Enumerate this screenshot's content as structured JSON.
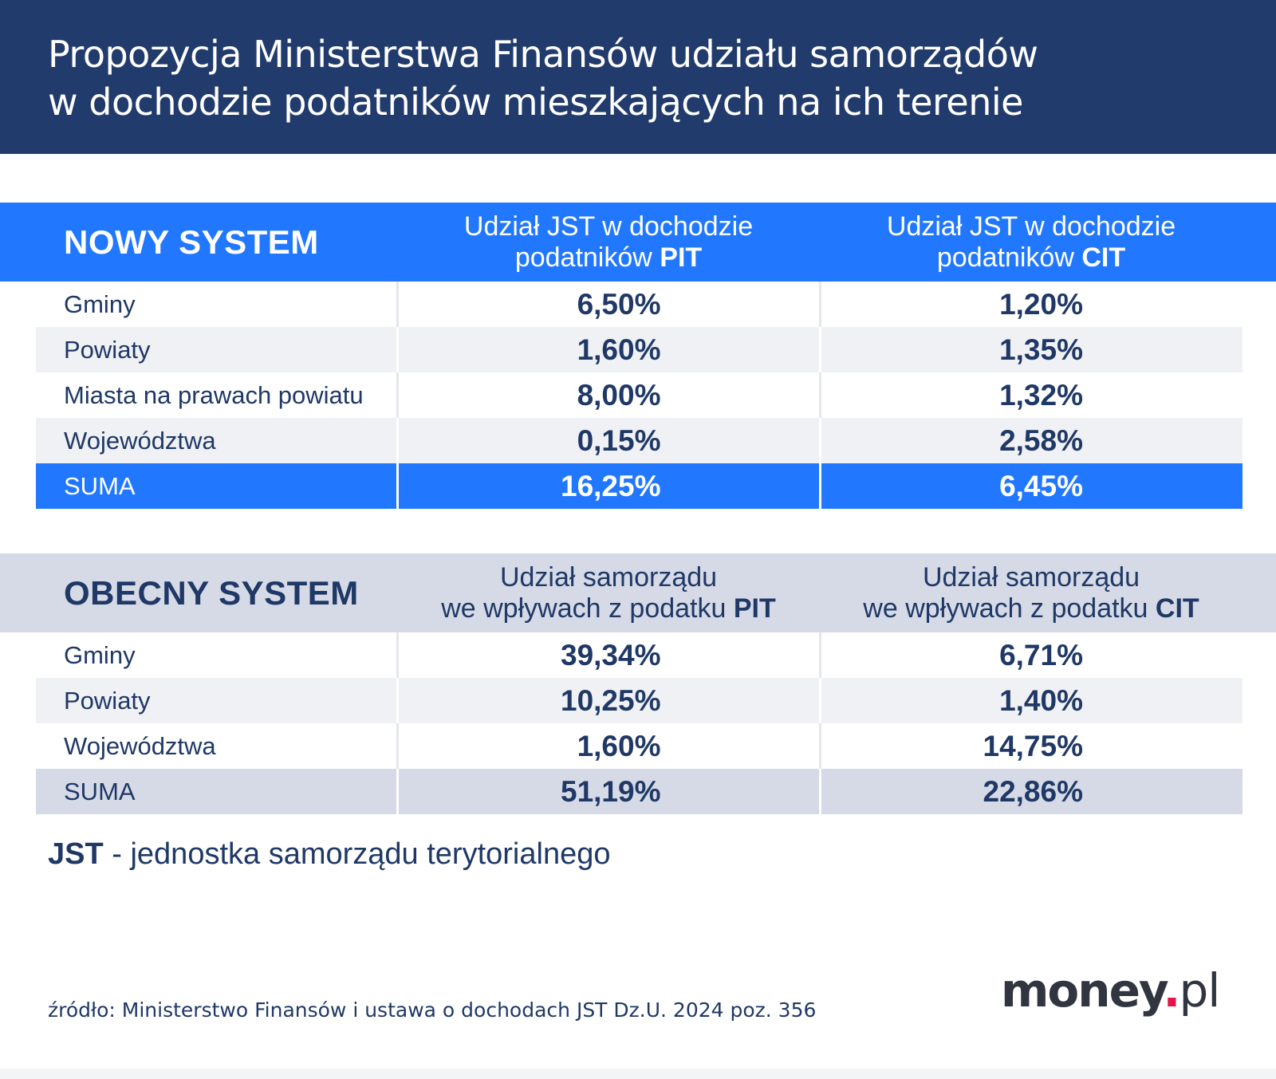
{
  "title": {
    "line1": "Propozycja Ministerstwa Finansów udziału samorządów",
    "line2": "w dochodzie podatników mieszkających na ich terenie"
  },
  "new_system": {
    "label": "NOWY SYSTEM",
    "col_pit_text": "Udział JST w dochodzie",
    "col_pit_text2": "podatników ",
    "col_pit_bold": "PIT",
    "col_cit_text": "Udział JST w dochodzie",
    "col_cit_text2": "podatników ",
    "col_cit_bold": "CIT",
    "rows": [
      {
        "name": "Gminy",
        "pit": "6,50%",
        "cit": "1,20%"
      },
      {
        "name": "Powiaty",
        "pit": "1,60%",
        "cit": "1,35%"
      },
      {
        "name": "Miasta na prawach powiatu",
        "pit": "8,00%",
        "cit": "1,32%"
      },
      {
        "name": "Województwa",
        "pit": "0,15%",
        "cit": "2,58%"
      },
      {
        "name": "SUMA",
        "pit": "16,25%",
        "cit": "6,45%"
      }
    ]
  },
  "current_system": {
    "label": "OBECNY SYSTEM",
    "col_pit_text": "Udział samorządu",
    "col_pit_text2": "we wpływach z podatku ",
    "col_pit_bold": "PIT",
    "col_cit_text": "Udział samorządu",
    "col_cit_text2": "we wpływach z podatku ",
    "col_cit_bold": "CIT",
    "rows": [
      {
        "name": "Gminy",
        "pit": "39,34%",
        "cit": "6,71%"
      },
      {
        "name": "Powiaty",
        "pit": "10,25%",
        "cit": "1,40%"
      },
      {
        "name": "Województwa",
        "pit": "1,60%",
        "cit": "14,75%"
      },
      {
        "name": "SUMA",
        "pit": "51,19%",
        "cit": "22,86%"
      }
    ]
  },
  "note": {
    "abbr": "JST",
    "text": " - jednostka samorządu terytorialnego"
  },
  "source": "źródło: Ministerstwo Finansów i ustawa o dochodach JST Dz.U. 2024 poz. 356",
  "logo": {
    "main": "money",
    "dot": ".",
    "suffix": "pl"
  },
  "colors": {
    "navy": "#223b6d",
    "blue": "#2178ff",
    "grey": "#d5dae6",
    "row_alt": "#f0f1f4",
    "logo_dot": "#e5154a"
  }
}
